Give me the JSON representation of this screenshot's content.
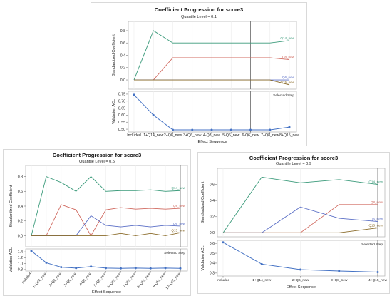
{
  "chart_data": [
    {
      "type": "line",
      "title": "Coefficient Progression for score3",
      "subtitle": "Quantile Level = 0.1",
      "x_label": "Effect Sequence",
      "categories": [
        "Included",
        "1+Q14_new",
        "2+Q8_new",
        "3+Q6_new",
        "4-Q8_new",
        "5-Q6_new",
        "6-Q6_new",
        "7+Q8_new",
        "8+Q15_new"
      ],
      "selected_step_label": "Selected Step",
      "selected_step_index": 6,
      "coef_plot": {
        "ylabel": "Standardized Coefficient",
        "ylim": [
          -0.15,
          0.95
        ],
        "yticks": [
          "0.0",
          "0.2",
          "0.4",
          "0.6",
          "0.8"
        ],
        "series": [
          {
            "name": "Q14_new",
            "color": "#3a9a7a",
            "values": [
              0,
              0.8,
              0.6,
              0.6,
              0.6,
              0.6,
              0.6,
              0.6,
              0.64
            ]
          },
          {
            "name": "Q8_new",
            "color": "#d0695f",
            "values": [
              0,
              0,
              0.36,
              0.36,
              0.36,
              0.36,
              0.36,
              0.36,
              0.33
            ]
          },
          {
            "name": "Q6_new",
            "color": "#5b6fc6",
            "values": [
              0,
              0,
              0,
              0,
              0,
              0,
              0,
              0,
              0
            ]
          },
          {
            "name": "Q15_new",
            "color": "#8a6b2a",
            "values": [
              0,
              0,
              0,
              0,
              0,
              0,
              0,
              0,
              -0.08
            ]
          }
        ]
      },
      "acl_plot": {
        "ylabel": "Validation ACL",
        "ylim": [
          0.48,
          0.77
        ],
        "yticks": [
          "0.50",
          "0.55",
          "0.60",
          "0.65",
          "0.70",
          "0.75"
        ],
        "color": "#4472c4",
        "values": [
          0.745,
          0.6,
          0.495,
          0.495,
          0.495,
          0.495,
          0.495,
          0.495,
          0.515
        ]
      }
    },
    {
      "type": "line",
      "title": "Coefficient Progression for score3",
      "subtitle": "Quantile Level = 0.5",
      "x_label": "Effect Sequence",
      "categories": [
        "Included",
        "1+Q14_new",
        "2+Q8_new",
        "3+Q6_new",
        "4-Q8_new",
        "5+Q8_new",
        "6+Q15_new",
        "7-Q15_new",
        "8+Q15_new",
        "9-Q15_new",
        "10+Q15_new"
      ],
      "selected_step_label": "Selected Step",
      "selected_step_index": 10,
      "coef_plot": {
        "ylabel": "Standardized Coefficient",
        "ylim": [
          -0.15,
          0.95
        ],
        "yticks": [
          "0.0",
          "0.2",
          "0.4",
          "0.6",
          "0.8"
        ],
        "series": [
          {
            "name": "Q14_new",
            "color": "#3a9a7a",
            "values": [
              0,
              0.8,
              0.72,
              0.6,
              0.8,
              0.6,
              0.61,
              0.61,
              0.62,
              0.6,
              0.61
            ]
          },
          {
            "name": "Q8_new",
            "color": "#d0695f",
            "values": [
              0,
              0,
              0.42,
              0.35,
              0,
              0.35,
              0.38,
              0.36,
              0.37,
              0.36,
              0.37
            ]
          },
          {
            "name": "Q6_new",
            "color": "#5b6fc6",
            "values": [
              0,
              0,
              0,
              0,
              0.27,
              0.14,
              0.12,
              0.14,
              0.12,
              0.14,
              0.13
            ]
          },
          {
            "name": "Q15_new",
            "color": "#8a6b2a",
            "values": [
              0,
              0,
              0,
              0,
              0,
              0,
              0.03,
              0,
              0.03,
              0,
              0.04
            ]
          }
        ]
      },
      "acl_plot": {
        "ylabel": "Validation ACL",
        "ylim": [
          0.75,
          1.5
        ],
        "yticks": [
          "0.8",
          "1.0",
          "1.2",
          "1.4"
        ],
        "color": "#4472c4",
        "values": [
          1.43,
          1.03,
          0.88,
          0.85,
          0.9,
          0.85,
          0.84,
          0.85,
          0.84,
          0.85,
          0.84
        ]
      }
    },
    {
      "type": "line",
      "title": "Coefficient Progression for score3",
      "subtitle": "Quantile Level = 0.9",
      "x_label": "Effect Sequence",
      "categories": [
        "Included",
        "1+Q14_new",
        "2+Q6_new",
        "3+Q8_new",
        "4+Q15_new"
      ],
      "selected_step_label": "Selected Step",
      "selected_step_index": 4,
      "coef_plot": {
        "ylabel": "Standardized Coefficient",
        "ylim": [
          -0.05,
          0.8
        ],
        "yticks": [
          "0.0",
          "0.2",
          "0.4",
          "0.6"
        ],
        "series": [
          {
            "name": "Q14_new",
            "color": "#3a9a7a",
            "values": [
              0,
              0.69,
              0.62,
              0.66,
              0.6
            ]
          },
          {
            "name": "Q8_new",
            "color": "#d0695f",
            "values": [
              0,
              0,
              0,
              0.35,
              0.35
            ]
          },
          {
            "name": "Q6_new",
            "color": "#5b6fc6",
            "values": [
              0,
              0,
              0.32,
              0.18,
              0.14
            ]
          },
          {
            "name": "Q15_new",
            "color": "#8a6b2a",
            "values": [
              0,
              0,
              0,
              0,
              0.06
            ]
          }
        ]
      },
      "acl_plot": {
        "ylabel": "Validation ACL",
        "ylim": [
          0.27,
          0.63
        ],
        "yticks": [
          "0.3",
          "0.4",
          "0.5",
          "0.6"
        ],
        "color": "#4472c4",
        "values": [
          0.61,
          0.39,
          0.335,
          0.32,
          0.31
        ]
      }
    }
  ]
}
